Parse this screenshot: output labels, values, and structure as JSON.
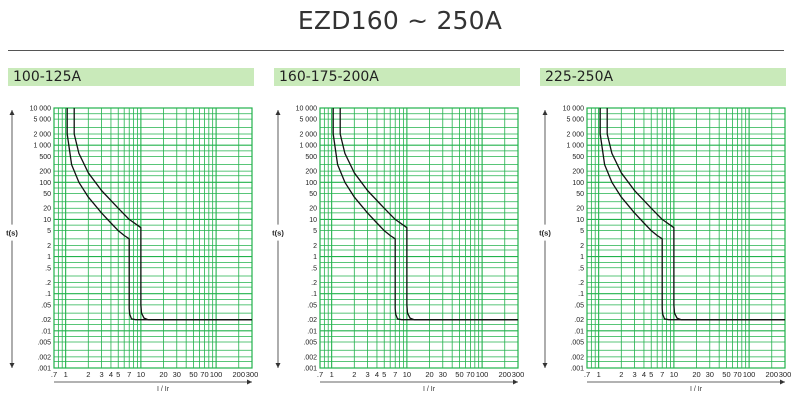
{
  "title": "EZD160 ~ 250A",
  "chart_data": [
    {
      "type": "line",
      "title": "100-125A",
      "xlabel": "I / Ir",
      "ylabel": "t(s)",
      "xscale": "log",
      "yscale": "log",
      "xlim": [
        0.7,
        300
      ],
      "ylim": [
        0.001,
        10000
      ],
      "x_ticks": [
        ".7",
        "1",
        "2",
        "3",
        "4",
        "5",
        "7",
        "10",
        "20",
        "30",
        "50",
        "70",
        "100",
        "200",
        "300"
      ],
      "y_ticks": [
        "10 000",
        "5 000",
        "2 000",
        "1 000",
        "500",
        "200",
        "100",
        "50",
        "20",
        "10",
        "5",
        "2",
        "1",
        ".5",
        ".2",
        ".1",
        ".05",
        ".02",
        ".01",
        ".005",
        ".002",
        ".001"
      ],
      "series": [
        {
          "name": "lower-bound",
          "x": [
            1.05,
            1.05,
            1.2,
            1.5,
            2,
            3,
            4,
            5,
            6,
            7,
            7,
            7.1,
            7.5,
            8.5,
            300
          ],
          "y": [
            10000,
            2000,
            300,
            100,
            40,
            15,
            8,
            5,
            3.7,
            3,
            0.04,
            0.028,
            0.021,
            0.02,
            0.02
          ]
        },
        {
          "name": "upper-bound",
          "x": [
            1.3,
            1.3,
            1.5,
            2,
            3,
            5,
            7,
            10,
            10,
            10.2,
            11,
            12.5,
            300
          ],
          "y": [
            10000,
            2000,
            600,
            180,
            60,
            20,
            10,
            6,
            0.05,
            0.03,
            0.022,
            0.02,
            0.02
          ]
        }
      ]
    },
    {
      "type": "line",
      "title": "160-175-200A",
      "xlabel": "I / Ir",
      "ylabel": "t(s)",
      "xscale": "log",
      "yscale": "log",
      "xlim": [
        0.7,
        300
      ],
      "ylim": [
        0.001,
        10000
      ],
      "x_ticks": [
        ".7",
        "1",
        "2",
        "3",
        "4",
        "5",
        "7",
        "10",
        "20",
        "30",
        "50",
        "70",
        "100",
        "200",
        "300"
      ],
      "y_ticks": [
        "10 000",
        "5 000",
        "2 000",
        "1 000",
        "500",
        "200",
        "100",
        "50",
        "20",
        "10",
        "5",
        "2",
        "1",
        ".5",
        ".2",
        ".1",
        ".05",
        ".02",
        ".01",
        ".005",
        ".002",
        ".001"
      ],
      "series": [
        {
          "name": "lower-bound",
          "x": [
            1.05,
            1.05,
            1.2,
            1.5,
            2,
            3,
            4,
            5,
            6,
            7,
            7,
            7.1,
            7.5,
            8.5,
            300
          ],
          "y": [
            10000,
            2000,
            300,
            100,
            40,
            15,
            8,
            5,
            3.7,
            3,
            0.04,
            0.028,
            0.021,
            0.02,
            0.02
          ]
        },
        {
          "name": "upper-bound",
          "x": [
            1.3,
            1.3,
            1.5,
            2,
            3,
            5,
            7,
            10,
            10,
            10.2,
            11,
            12.5,
            300
          ],
          "y": [
            10000,
            2000,
            600,
            180,
            60,
            20,
            10,
            6,
            0.05,
            0.03,
            0.022,
            0.02,
            0.02
          ]
        }
      ]
    },
    {
      "type": "line",
      "title": "225-250A",
      "xlabel": "I / Ir",
      "ylabel": "t(s)",
      "xscale": "log",
      "yscale": "log",
      "xlim": [
        0.7,
        300
      ],
      "ylim": [
        0.001,
        10000
      ],
      "x_ticks": [
        ".7",
        "1",
        "2",
        "3",
        "4",
        "5",
        "7",
        "10",
        "20",
        "30",
        "50",
        "70",
        "100",
        "200",
        "300"
      ],
      "y_ticks": [
        "10 000",
        "5 000",
        "2 000",
        "1 000",
        "500",
        "200",
        "100",
        "50",
        "20",
        "10",
        "5",
        "2",
        "1",
        ".5",
        ".2",
        ".1",
        ".05",
        ".02",
        ".01",
        ".005",
        ".002",
        ".001"
      ],
      "series": [
        {
          "name": "lower-bound",
          "x": [
            1.05,
            1.05,
            1.2,
            1.5,
            2,
            3,
            4,
            5,
            6,
            7,
            7,
            7.1,
            7.5,
            8.5,
            300
          ],
          "y": [
            10000,
            2000,
            300,
            100,
            40,
            15,
            8,
            5,
            3.7,
            3,
            0.04,
            0.028,
            0.021,
            0.02,
            0.02
          ]
        },
        {
          "name": "upper-bound",
          "x": [
            1.3,
            1.3,
            1.5,
            2,
            3,
            5,
            7,
            10,
            10,
            10.2,
            11,
            12.5,
            300
          ],
          "y": [
            10000,
            2000,
            600,
            180,
            60,
            20,
            10,
            6,
            0.05,
            0.03,
            0.022,
            0.02,
            0.02
          ]
        }
      ]
    }
  ],
  "colors": {
    "grid": "#22b24c",
    "curve": "#111111",
    "header_bg": "#c9eaba"
  }
}
